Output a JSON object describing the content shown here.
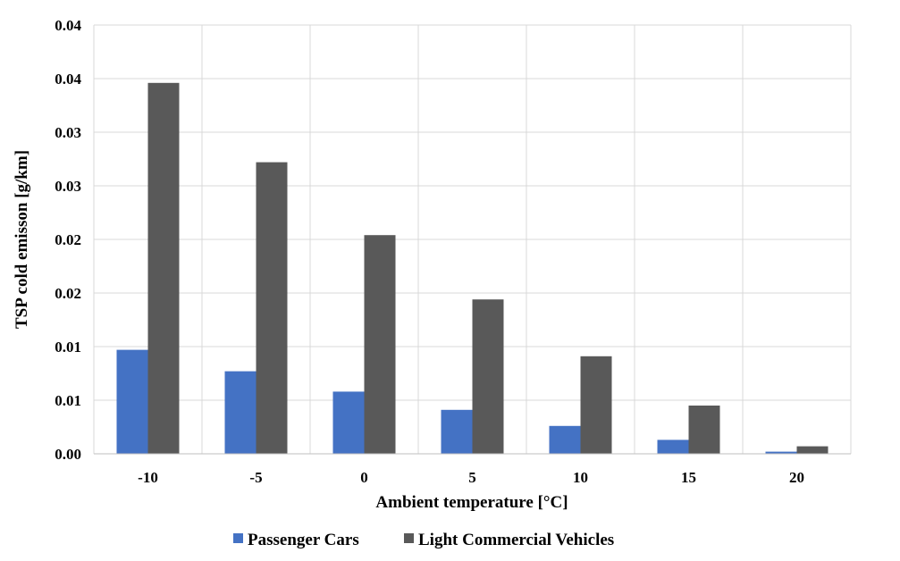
{
  "chart_data": {
    "type": "bar",
    "title": "",
    "xlabel": "Ambient temperature [°C]",
    "ylabel": "TSP cold emisson [g/km]",
    "categories": [
      "-10",
      "-5",
      "0",
      "5",
      "10",
      "15",
      "20"
    ],
    "ylim": [
      0,
      0.04
    ],
    "y_tick_labels": [
      "0.00",
      "0.01",
      "0.01",
      "0.02",
      "0.02",
      "0.03",
      "0.03",
      "0.04",
      "0.04"
    ],
    "grid": true,
    "legend_position": "bottom",
    "series": [
      {
        "name": "Passenger Cars",
        "color": "#4472c4",
        "values": [
          0.0097,
          0.0077,
          0.0058,
          0.0041,
          0.0026,
          0.0013,
          0.0002
        ]
      },
      {
        "name": "Light Commercial Vehicles",
        "color": "#595959",
        "values": [
          0.0346,
          0.0272,
          0.0204,
          0.0144,
          0.0091,
          0.0045,
          0.0007
        ]
      }
    ]
  }
}
